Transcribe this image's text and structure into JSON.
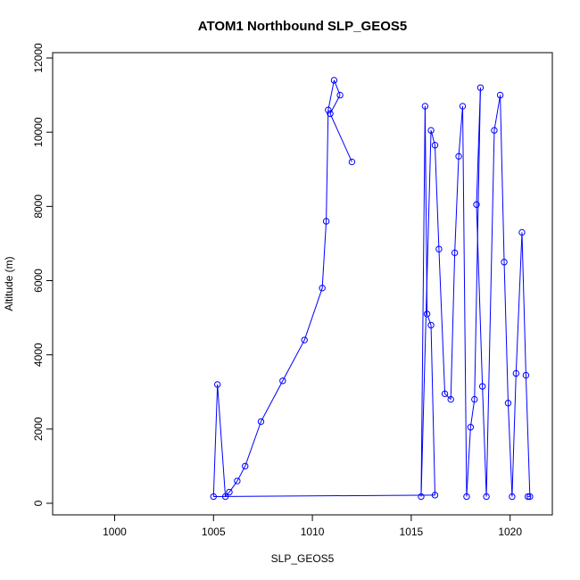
{
  "chart_data": {
    "type": "line",
    "title": "ATOM1 Northbound SLP_GEOS5",
    "xlabel": "SLP_GEOS5",
    "ylabel": "Altitude (m)",
    "xlim": [
      997,
      1022
    ],
    "ylim": [
      0,
      12000
    ],
    "xticks": [
      1000,
      1005,
      1010,
      1015,
      1020
    ],
    "yticks": [
      0,
      2000,
      4000,
      6000,
      8000,
      10000,
      12000
    ],
    "grid": false,
    "legend": "none",
    "marker": "open-circle",
    "color": "#0000ff",
    "series": [
      {
        "name": "",
        "points": [
          [
            1012.0,
            9200
          ],
          [
            1010.9,
            10500
          ],
          [
            1011.4,
            11000
          ],
          [
            1011.1,
            11400
          ],
          [
            1010.8,
            10600
          ],
          [
            1010.7,
            7600
          ],
          [
            1010.5,
            5800
          ],
          [
            1009.6,
            4400
          ],
          [
            1008.5,
            3300
          ],
          [
            1007.4,
            2200
          ],
          [
            1006.6,
            1000
          ],
          [
            1006.2,
            600
          ],
          [
            1005.8,
            300
          ],
          [
            1005.6,
            180
          ],
          [
            1005.2,
            3200
          ],
          [
            1005.0,
            180
          ],
          [
            1016.2,
            220
          ],
          [
            1016.0,
            4800
          ],
          [
            1015.8,
            5100
          ],
          [
            1015.7,
            10700
          ],
          [
            1015.5,
            180
          ],
          [
            1016.0,
            10050
          ],
          [
            1016.2,
            9650
          ],
          [
            1016.4,
            6850
          ],
          [
            1016.7,
            2950
          ],
          [
            1017.0,
            2800
          ],
          [
            1017.2,
            6750
          ],
          [
            1017.4,
            9350
          ],
          [
            1017.6,
            10700
          ],
          [
            1017.8,
            180
          ],
          [
            1018.0,
            2050
          ],
          [
            1018.2,
            2800
          ],
          [
            1018.5,
            11200
          ],
          [
            1018.3,
            8050
          ],
          [
            1018.6,
            3150
          ],
          [
            1018.8,
            180
          ],
          [
            1019.2,
            10050
          ],
          [
            1019.5,
            11000
          ],
          [
            1019.7,
            6500
          ],
          [
            1019.9,
            2700
          ],
          [
            1020.1,
            180
          ],
          [
            1020.3,
            3500
          ],
          [
            1020.6,
            7300
          ],
          [
            1020.8,
            3450
          ],
          [
            1021.0,
            180
          ],
          [
            1020.9,
            180
          ]
        ]
      }
    ]
  }
}
